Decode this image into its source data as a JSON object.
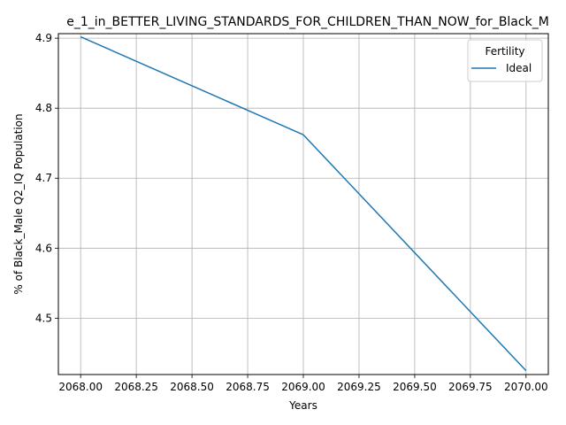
{
  "chart_data": {
    "type": "line",
    "title": "e_1_in_BETTER_LIVING_STANDARDS_FOR_CHILDREN_THAN_NOW_for_Black_M",
    "xlabel": "Years",
    "ylabel": "% of Black_Male Q2_IQ Population",
    "xlim": [
      2067.9,
      2070.1
    ],
    "ylim": [
      4.4195,
      4.9065
    ],
    "x_ticks": [
      2068.0,
      2068.25,
      2068.5,
      2068.75,
      2069.0,
      2069.25,
      2069.5,
      2069.75,
      2070.0
    ],
    "x_tick_labels": [
      "2068.00",
      "2068.25",
      "2068.50",
      "2068.75",
      "2069.00",
      "2069.25",
      "2069.50",
      "2069.75",
      "2070.00"
    ],
    "y_ticks": [
      4.5,
      4.6,
      4.7,
      4.8,
      4.9
    ],
    "y_tick_labels": [
      "4.5",
      "4.6",
      "4.7",
      "4.8",
      "4.9"
    ],
    "grid": true,
    "legend": {
      "title": "Fertility",
      "placement": "top-right"
    },
    "series": [
      {
        "name": "Ideal",
        "color": "#1f77b4",
        "x": [
          2068,
          2069,
          2070
        ],
        "y": [
          4.902,
          4.762,
          4.425
        ]
      }
    ]
  }
}
